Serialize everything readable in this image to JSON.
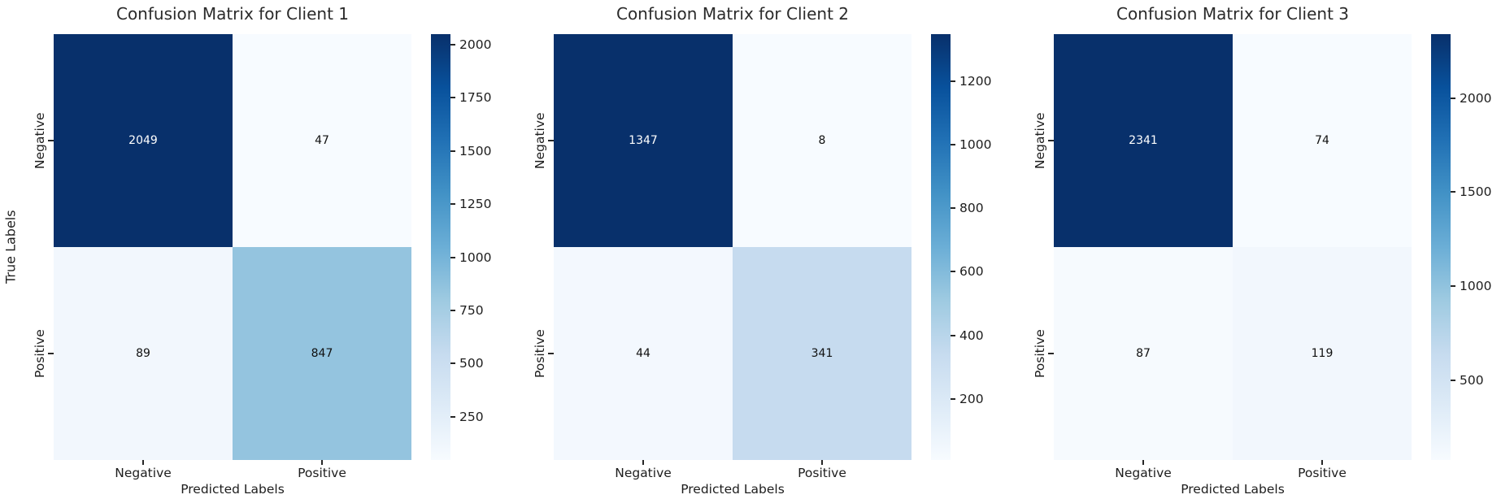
{
  "figure": {
    "background": "#ffffff",
    "text_color": "#262626",
    "title_color": "#2b2b2b"
  },
  "colors": {
    "blues_gradient_top_to_bottom": [
      "#08306b",
      "#08519c",
      "#2171b5",
      "#4292c6",
      "#6baed6",
      "#9ecae1",
      "#c6dbef",
      "#deebf7",
      "#f7fbff"
    ],
    "annotation_dark": "#101010",
    "annotation_light": "#ffffff"
  },
  "chart_data": [
    {
      "type": "heatmap",
      "title": "Confusion Matrix for Client 1",
      "xlabel": "Predicted Labels",
      "ylabel": "True Labels",
      "x_ticklabels": [
        "Negative",
        "Positive"
      ],
      "y_ticklabels": [
        "Negative",
        "Positive"
      ],
      "matrix": [
        [
          2049,
          47
        ],
        [
          89,
          847
        ]
      ],
      "vmin": 47,
      "vmax": 2049,
      "colorbar_ticks": [
        2000,
        1750,
        1500,
        1250,
        1000,
        750,
        500,
        250
      ],
      "colormap": "Blues",
      "cell_colors": [
        [
          "#08306b",
          "#f7fbff"
        ],
        [
          "#f2f7fd",
          "#94c4df"
        ]
      ],
      "cell_text_colors": [
        [
          "#ffffff",
          "#101010"
        ],
        [
          "#101010",
          "#101010"
        ]
      ]
    },
    {
      "type": "heatmap",
      "title": "Confusion Matrix for Client 2",
      "xlabel": "Predicted Labels",
      "ylabel": "",
      "x_ticklabels": [
        "Negative",
        "Positive"
      ],
      "y_ticklabels": [
        "Negative",
        "Positive"
      ],
      "matrix": [
        [
          1347,
          8
        ],
        [
          44,
          341
        ]
      ],
      "vmin": 8,
      "vmax": 1347,
      "colorbar_ticks": [
        1200,
        1000,
        800,
        600,
        400,
        200
      ],
      "colormap": "Blues",
      "cell_colors": [
        [
          "#08306b",
          "#f7fbff"
        ],
        [
          "#f3f8fe",
          "#c6dbef"
        ]
      ],
      "cell_text_colors": [
        [
          "#ffffff",
          "#101010"
        ],
        [
          "#101010",
          "#101010"
        ]
      ]
    },
    {
      "type": "heatmap",
      "title": "Confusion Matrix for Client 3",
      "xlabel": "Predicted Labels",
      "ylabel": "",
      "x_ticklabels": [
        "Negative",
        "Positive"
      ],
      "y_ticklabels": [
        "Negative",
        "Positive"
      ],
      "matrix": [
        [
          2341,
          74
        ],
        [
          87,
          119
        ]
      ],
      "vmin": 74,
      "vmax": 2341,
      "colorbar_ticks": [
        2000,
        1500,
        1000,
        500
      ],
      "colormap": "Blues",
      "cell_colors": [
        [
          "#08306b",
          "#f7fbff"
        ],
        [
          "#f6fafe",
          "#f2f7fd"
        ]
      ],
      "cell_text_colors": [
        [
          "#ffffff",
          "#101010"
        ],
        [
          "#101010",
          "#101010"
        ]
      ]
    }
  ]
}
